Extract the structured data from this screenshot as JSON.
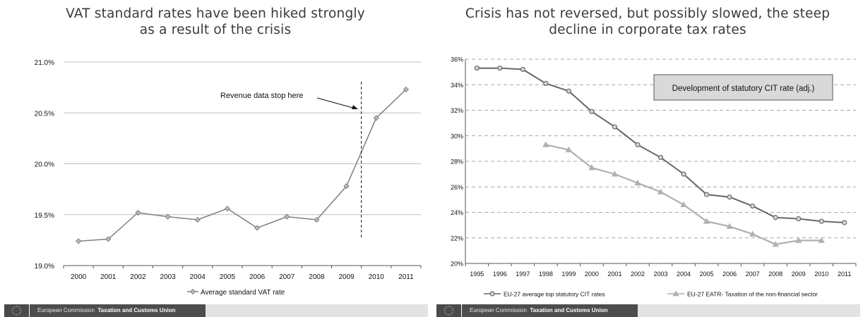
{
  "left_panel": {
    "title": "VAT standard rates have been hiked strongly\nas a result of the crisis",
    "footer": {
      "org": "European Commission",
      "unit": "Taxation and Customs Union"
    }
  },
  "right_panel": {
    "title": "Crisis has not reversed, but possibly slowed, the steep\ndecline in corporate tax rates",
    "footer": {
      "org": "European Commission",
      "unit": "Taxation and Customs Union"
    }
  },
  "chart_data": [
    {
      "type": "line",
      "x": [
        "2000",
        "2001",
        "2002",
        "2003",
        "2004",
        "2005",
        "2006",
        "2007",
        "2008",
        "2009",
        "2010",
        "2011"
      ],
      "series": [
        {
          "name": "Average standard VAT rate",
          "color": "#7f7f7f",
          "marker": "diamond",
          "values": [
            19.24,
            19.26,
            19.52,
            19.48,
            19.45,
            19.56,
            19.37,
            19.48,
            19.45,
            19.78,
            20.45,
            20.73
          ]
        }
      ],
      "ylim": [
        19.0,
        21.0
      ],
      "yticks": [
        "19.0%",
        "19.5%",
        "20.0%",
        "20.5%",
        "21.0%"
      ],
      "annotation": "Revenue data stop here",
      "legend_position": "bottom",
      "grid": "horizontal"
    },
    {
      "type": "line",
      "x": [
        "1995",
        "1996",
        "1997",
        "1998",
        "1999",
        "2000",
        "2001",
        "2002",
        "2003",
        "2004",
        "2005",
        "2006",
        "2007",
        "2008",
        "2009",
        "2010",
        "2011"
      ],
      "series": [
        {
          "name": "EU-27 average top statutory CIT rates",
          "color": "#666666",
          "marker": "circle",
          "values": [
            35.3,
            35.3,
            35.2,
            34.1,
            33.5,
            31.9,
            30.7,
            29.3,
            28.3,
            27.0,
            25.4,
            25.2,
            24.5,
            23.6,
            23.5,
            23.3,
            23.2
          ]
        },
        {
          "name": "EU-27 EATR- Taxation of the non-financial sector",
          "color": "#b0b0b0",
          "marker": "triangle",
          "values": [
            null,
            null,
            null,
            29.3,
            28.9,
            27.5,
            27.0,
            26.3,
            25.6,
            24.6,
            23.3,
            22.9,
            22.3,
            21.5,
            21.8,
            21.8,
            null
          ]
        }
      ],
      "ylim": [
        20,
        36
      ],
      "yticks": [
        "20%",
        "22%",
        "24%",
        "26%",
        "28%",
        "30%",
        "32%",
        "34%",
        "36%"
      ],
      "annotation": "Development of statutory CIT rate (adj.)",
      "legend_position": "bottom",
      "grid": "horizontal dashed"
    }
  ]
}
